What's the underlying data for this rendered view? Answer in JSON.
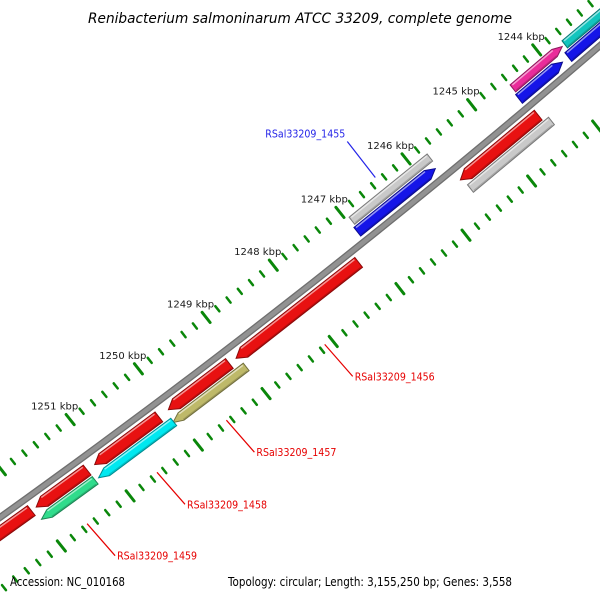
{
  "title": "Renibacterium salmoninarum ATCC 33209, complete genome",
  "status_bar": {
    "accession": "Accession: NC_010168",
    "summary": "Topology: circular; Length: 3,155,250 bp; Genes: 3,558"
  },
  "colors": {
    "background": "#FFFFFF",
    "backbone_outer": "#6F6F6F",
    "backbone_inner": "#929292",
    "tick": "#0A870A",
    "scale_text": "#1A1A1A",
    "label_red": "#E60000",
    "label_blue": "#2424E8"
  },
  "scale": {
    "unit": "kbp",
    "minor_ticks_per_kbp": 6,
    "visible_range_kbp": [
      1242.6,
      1252.9
    ],
    "labels": [
      {
        "kbp": 1244,
        "text": "1244 kbp"
      },
      {
        "kbp": 1245,
        "text": "1245 kbp"
      },
      {
        "kbp": 1246,
        "text": "1246 kbp"
      },
      {
        "kbp": 1247,
        "text": "1247 kbp"
      },
      {
        "kbp": 1248,
        "text": "1248 kbp"
      },
      {
        "kbp": 1249,
        "text": "1249 kbp"
      },
      {
        "kbp": 1250,
        "text": "1250 kbp"
      },
      {
        "kbp": 1251,
        "text": "1251 kbp"
      }
    ]
  },
  "chart_data": {
    "type": "genome-track-map",
    "topology": "circular",
    "length_bp": 3155250,
    "gene_count": 3558,
    "lanes": [
      "U2",
      "U1",
      "backbone",
      "L1",
      "L2"
    ],
    "genes": [
      {
        "id": "teal-top-corner",
        "lane": "U2",
        "start_kbp": 1242.8,
        "end_kbp": 1243.7,
        "arrow": "none",
        "color": "#12C5BE"
      },
      {
        "id": "blue-top-corner",
        "lane": "U1",
        "start_kbp": 1243.02,
        "end_kbp": 1243.76,
        "arrow": "none",
        "color": "#1515E8"
      },
      {
        "id": "magenta-gene",
        "lane": "U2",
        "start_kbp": 1243.74,
        "end_kbp": 1244.5,
        "arrow": "toward_lower",
        "color": "#EA2C9A"
      },
      {
        "id": "blue-gene-upper",
        "lane": "U1",
        "start_kbp": 1243.85,
        "end_kbp": 1244.52,
        "arrow": "toward_lower",
        "color": "#1515E8"
      },
      {
        "id": "gray-gene-lower",
        "lane": "L2",
        "start_kbp": 1244.38,
        "end_kbp": 1245.62,
        "arrow": "none",
        "color": "#C9C9C9"
      },
      {
        "id": "red-gene-1",
        "lane": "L1",
        "start_kbp": 1244.46,
        "end_kbp": 1245.65,
        "arrow": "toward_higher",
        "color": "#E81111"
      },
      {
        "id": "gray-gene-upper",
        "lane": "U2",
        "start_kbp": 1245.77,
        "end_kbp": 1246.95,
        "arrow": "none",
        "color": "#C9C9C9"
      },
      {
        "id": "RSal33209_1455",
        "lane": "U1",
        "start_kbp": 1245.8,
        "end_kbp": 1246.98,
        "arrow": "toward_lower",
        "color": "#1515E8"
      },
      {
        "id": "RSal33209_1456",
        "lane": "L1",
        "start_kbp": 1247.19,
        "end_kbp": 1249.02,
        "arrow": "toward_higher",
        "color": "#E81111"
      },
      {
        "id": "red-gene-3",
        "lane": "L1",
        "start_kbp": 1249.12,
        "end_kbp": 1250.02,
        "arrow": "toward_higher",
        "color": "#E81111"
      },
      {
        "id": "red-gene-4",
        "lane": "L1",
        "start_kbp": 1250.16,
        "end_kbp": 1251.1,
        "arrow": "toward_higher",
        "color": "#E81111"
      },
      {
        "id": "red-gene-5",
        "lane": "L1",
        "start_kbp": 1251.21,
        "end_kbp": 1251.95,
        "arrow": "toward_higher",
        "color": "#E81111"
      },
      {
        "id": "red-gene-6",
        "lane": "L1",
        "start_kbp": 1252.02,
        "end_kbp": 1252.8,
        "arrow": "toward_higher",
        "color": "#E81111"
      },
      {
        "id": "RSal33209_1457",
        "lane": "L2",
        "start_kbp": 1248.99,
        "end_kbp": 1250.07,
        "arrow": "toward_higher",
        "color": "#BEB969"
      },
      {
        "id": "RSal33209_1458",
        "lane": "L2",
        "start_kbp": 1250.06,
        "end_kbp": 1251.16,
        "arrow": "toward_higher",
        "color": "#00E8F0"
      },
      {
        "id": "RSal33209_1459",
        "lane": "L2",
        "start_kbp": 1251.21,
        "end_kbp": 1251.99,
        "arrow": "toward_higher",
        "color": "#30DC8C"
      }
    ],
    "gene_labels": [
      {
        "text": "RSal33209_1455",
        "color": "#2424E8",
        "target_kbp": 1246.42,
        "side": "upper"
      },
      {
        "text": "RSal33209_1456",
        "color": "#E60000",
        "target_kbp": 1248.1,
        "side": "lower"
      },
      {
        "text": "RSal33209_1457",
        "color": "#E60000",
        "target_kbp": 1249.56,
        "side": "lower"
      },
      {
        "text": "RSal33209_1458",
        "color": "#E60000",
        "target_kbp": 1250.58,
        "side": "lower"
      },
      {
        "text": "RSal33209_1459",
        "color": "#E60000",
        "target_kbp": 1251.6,
        "side": "lower"
      }
    ]
  }
}
